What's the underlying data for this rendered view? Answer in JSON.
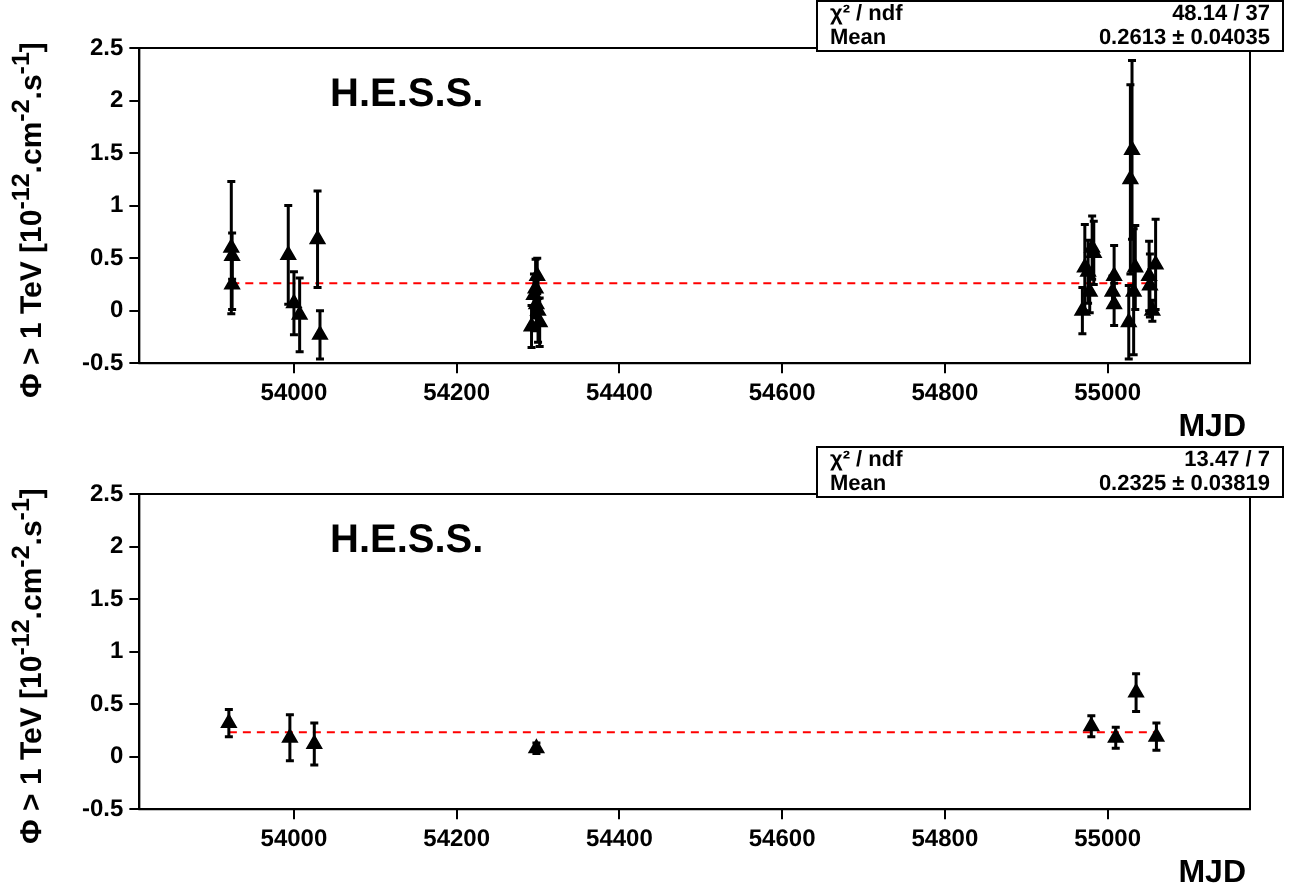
{
  "chart_data": [
    {
      "type": "scatter",
      "xlabel": "MJD",
      "ylabel": "Φ > 1 TeV [10$^{-12}$.cm$^{-2}$.s$^{-1}$]",
      "color": "#000000",
      "marker": "triangle",
      "annotations": [
        "H.E.S.S.",
        "χ² / ndf",
        "48.14 / 37",
        "Mean",
        "0.2613 ± 0.04035"
      ],
      "x": [
        53923,
        53924,
        53924,
        53993,
        54000,
        54007,
        54029,
        54032,
        54292,
        54295,
        54297,
        54298,
        54299,
        54300,
        54302,
        54969,
        54972,
        54976,
        54978,
        54981,
        54983,
        55006,
        55008,
        55008,
        55026,
        55028,
        55030,
        55032,
        55034,
        55051,
        55052,
        55055,
        55059
      ],
      "values": [
        0.6,
        0.52,
        0.25,
        0.53,
        0.07,
        -0.04,
        0.68,
        -0.23,
        -0.15,
        0.15,
        0.21,
        0.06,
        0.33,
        0.0,
        -0.11,
        0.0,
        0.41,
        0.37,
        0.18,
        0.6,
        0.55,
        0.18,
        0.33,
        0.06,
        -0.11,
        1.25,
        1.53,
        0.18,
        0.41,
        0.33,
        0.24,
        0.0,
        0.44
      ],
      "errors": [
        0.63,
        0.22,
        0.24,
        0.47,
        0.3,
        0.35,
        0.46,
        0.23,
        0.2,
        0.2,
        0.28,
        0.25,
        0.17,
        0.3,
        0.23,
        0.22,
        0.41,
        0.3,
        0.2,
        0.3,
        0.3,
        0.15,
        0.29,
        0.2,
        0.35,
        0.9,
        0.85,
        0.6,
        0.4,
        0.33,
        0.3,
        0.1,
        0.43
      ],
      "xlim": [
        53810,
        55175
      ],
      "xticks": [
        54000,
        54200,
        54400,
        54600,
        54800,
        55000
      ],
      "ylim": [
        -0.5,
        2.5
      ],
      "yticks": [
        -0.5,
        0,
        0.5,
        1,
        1.5,
        2,
        2.5
      ],
      "ref_lines": [
        {
          "axis": "y",
          "value": 0.2613,
          "color": "#ff0000",
          "line_style": "dashed"
        }
      ]
    },
    {
      "type": "scatter",
      "xlabel": "MJD",
      "ylabel": "Φ > 1 TeV [10$^{-12}$.cm$^{-2}$.s$^{-1}$]",
      "color": "#000000",
      "marker": "triangle",
      "annotations": [
        "H.E.S.S.",
        "χ² / ndf",
        "13.47 / 7",
        "Mean",
        "0.2325 ± 0.03819"
      ],
      "x": [
        53920,
        53995,
        54025,
        54298,
        54980,
        55010,
        55035,
        55060
      ],
      "values": [
        0.32,
        0.18,
        0.12,
        0.08,
        0.29,
        0.18,
        0.61,
        0.19
      ],
      "errors": [
        0.13,
        0.22,
        0.2,
        0.05,
        0.1,
        0.1,
        0.18,
        0.13
      ],
      "xlim": [
        53810,
        55175
      ],
      "xticks": [
        54000,
        54200,
        54400,
        54600,
        54800,
        55000
      ],
      "ylim": [
        -0.5,
        2.5
      ],
      "yticks": [
        -0.5,
        0,
        0.5,
        1,
        1.5,
        2,
        2.5
      ],
      "ref_lines": [
        {
          "axis": "y",
          "value": 0.2325,
          "color": "#ff0000",
          "line_style": "dashed"
        }
      ]
    }
  ]
}
